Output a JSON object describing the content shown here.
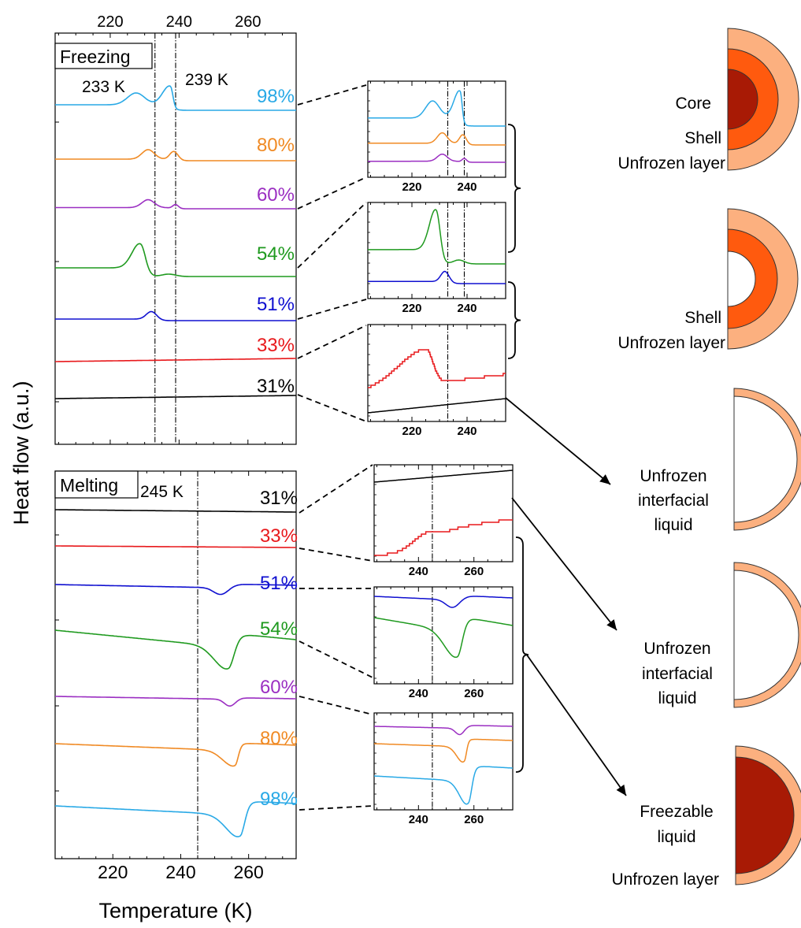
{
  "figure": {
    "y_axis_label": "Heat flow (a.u.)",
    "x_axis_label": "Temperature (K)"
  },
  "colors": {
    "98%": "#29a9e6",
    "80%": "#f08a24",
    "60%": "#9b2fc2",
    "54%": "#1f9a1f",
    "51%": "#1010d0",
    "33%": "#e8191c",
    "31%": "#000000",
    "unfrozen_layer": "#fcb07f",
    "shell": "#ff5a0e",
    "core": "#a81a05"
  },
  "chart_data": [
    {
      "id": "freezing",
      "type": "line",
      "box_label": "Freezing",
      "xlim": [
        204,
        274
      ],
      "x_ticks": [
        220,
        240,
        260
      ],
      "x_ticks_position": "top",
      "y_tick_labels": "none",
      "annotations": [
        {
          "text": "233 K",
          "x": 233
        },
        {
          "text": "239 K",
          "x": 239
        }
      ],
      "reference_lines": [
        233,
        239
      ],
      "series": [
        {
          "name": "98%",
          "color_key": "98%"
        },
        {
          "name": "80%",
          "color_key": "80%"
        },
        {
          "name": "60%",
          "color_key": "60%"
        },
        {
          "name": "54%",
          "color_key": "54%"
        },
        {
          "name": "51%",
          "color_key": "51%"
        },
        {
          "name": "33%",
          "color_key": "33%"
        },
        {
          "name": "31%",
          "color_key": "31%"
        }
      ]
    },
    {
      "id": "melting",
      "type": "line",
      "box_label": "Melting",
      "xlim": [
        203,
        274
      ],
      "x_ticks": [
        220,
        240,
        260
      ],
      "x_ticks_position": "bottom",
      "y_tick_labels": "none",
      "annotations": [
        {
          "text": "245 K",
          "x": 245
        }
      ],
      "reference_lines": [
        245
      ],
      "series": [
        {
          "name": "31%",
          "color_key": "31%"
        },
        {
          "name": "33%",
          "color_key": "33%"
        },
        {
          "name": "51%",
          "color_key": "51%"
        },
        {
          "name": "54%",
          "color_key": "54%"
        },
        {
          "name": "60%",
          "color_key": "60%"
        },
        {
          "name": "80%",
          "color_key": "80%"
        },
        {
          "name": "98%",
          "color_key": "98%"
        }
      ]
    },
    {
      "id": "inset-freezing-high",
      "type": "line",
      "xlim": [
        204,
        254
      ],
      "x_ticks": [
        220,
        240
      ],
      "reference_lines": [
        233,
        239
      ],
      "series": [
        {
          "color_key": "98%"
        },
        {
          "color_key": "80%"
        },
        {
          "color_key": "60%"
        }
      ]
    },
    {
      "id": "inset-freezing-mid",
      "type": "line",
      "xlim": [
        204,
        254
      ],
      "x_ticks": [
        220,
        240
      ],
      "reference_lines": [
        233,
        239
      ],
      "series": [
        {
          "color_key": "54%"
        },
        {
          "color_key": "51%"
        }
      ]
    },
    {
      "id": "inset-freezing-low",
      "type": "line",
      "xlim": [
        204,
        254
      ],
      "x_ticks": [
        220,
        240
      ],
      "reference_lines": [
        233
      ],
      "series": [
        {
          "color_key": "33%"
        },
        {
          "color_key": "31%"
        }
      ]
    },
    {
      "id": "inset-melting-low",
      "type": "line",
      "xlim": [
        224,
        274
      ],
      "x_ticks": [
        240,
        260
      ],
      "reference_lines": [
        245
      ],
      "series": [
        {
          "color_key": "31%"
        },
        {
          "color_key": "33%"
        }
      ]
    },
    {
      "id": "inset-melting-mid",
      "type": "line",
      "xlim": [
        224,
        274
      ],
      "x_ticks": [
        240,
        260
      ],
      "reference_lines": [
        245
      ],
      "series": [
        {
          "color_key": "51%"
        },
        {
          "color_key": "54%"
        }
      ]
    },
    {
      "id": "inset-melting-high",
      "type": "line",
      "xlim": [
        224,
        274
      ],
      "x_ticks": [
        240,
        260
      ],
      "reference_lines": [
        245
      ],
      "series": [
        {
          "color_key": "60%"
        },
        {
          "color_key": "80%"
        },
        {
          "color_key": "98%"
        }
      ]
    }
  ],
  "schematics": [
    {
      "id": "schematic-1",
      "labels": [
        "Core",
        "Shell",
        "Unfrozen layer"
      ],
      "layers": [
        "unfrozen_layer",
        "shell",
        "core"
      ]
    },
    {
      "id": "schematic-2",
      "labels": [
        "Shell",
        "Unfrozen layer"
      ],
      "layers": [
        "unfrozen_layer",
        "shell"
      ]
    },
    {
      "id": "schematic-3",
      "labels": [
        "Unfrozen",
        "interfacial",
        "liquid"
      ],
      "layers": [
        "unfrozen_layer"
      ]
    },
    {
      "id": "schematic-4",
      "labels": [
        "Unfrozen",
        "interfacial",
        "liquid"
      ],
      "layers": [
        "unfrozen_layer"
      ]
    },
    {
      "id": "schematic-5",
      "labels": [
        "Freezable",
        "liquid",
        "Unfrozen layer"
      ],
      "layers": [
        "unfrozen_layer",
        "core"
      ]
    }
  ]
}
